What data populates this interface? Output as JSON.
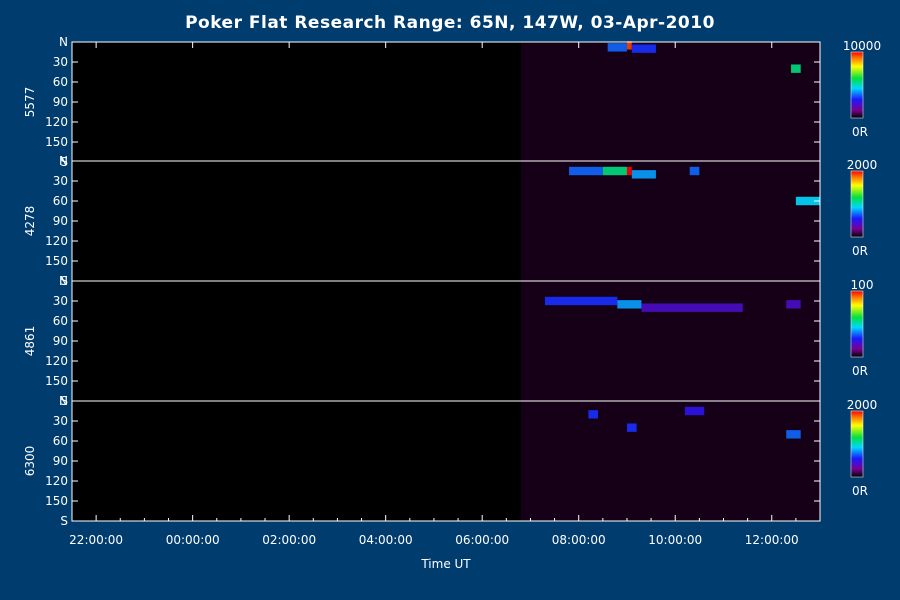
{
  "chart_data": {
    "type": "heatmap",
    "title": "Poker Flat Research Range: 65N, 147W, 03-Apr-2010",
    "xlabel": "Time UT",
    "x_ticks": [
      "22:00:00",
      "00:00:00",
      "02:00:00",
      "04:00:00",
      "06:00:00",
      "08:00:00",
      "10:00:00",
      "12:00:00"
    ],
    "x_range_hours": [
      -2.5,
      13.0
    ],
    "y_ticks": [
      "N",
      "30",
      "60",
      "90",
      "120",
      "150",
      "S"
    ],
    "y_range_deg": [
      0,
      180
    ],
    "data_start_hour": 6.8,
    "grid": false,
    "panels": [
      {
        "wavelength": "5577",
        "colorbar_max": "10000",
        "colorbar_min": "0R",
        "features": [
          {
            "t_start": 8.6,
            "t_end": 9.0,
            "zenith_deg": 8,
            "intensity": 0.35
          },
          {
            "t_start": 9.0,
            "t_end": 9.1,
            "zenith_deg": 5,
            "intensity": 0.95
          },
          {
            "t_start": 9.1,
            "t_end": 9.6,
            "zenith_deg": 10,
            "intensity": 0.3
          },
          {
            "t_start": 12.4,
            "t_end": 12.6,
            "zenith_deg": 40,
            "intensity": 0.55
          }
        ]
      },
      {
        "wavelength": "4278",
        "colorbar_max": "2000",
        "colorbar_min": "0R",
        "features": [
          {
            "t_start": 7.8,
            "t_end": 8.5,
            "zenith_deg": 15,
            "intensity": 0.35
          },
          {
            "t_start": 8.5,
            "t_end": 9.0,
            "zenith_deg": 15,
            "intensity": 0.55
          },
          {
            "t_start": 9.0,
            "t_end": 9.1,
            "zenith_deg": 15,
            "intensity": 1.0
          },
          {
            "t_start": 9.1,
            "t_end": 9.6,
            "zenith_deg": 20,
            "intensity": 0.4
          },
          {
            "t_start": 10.3,
            "t_end": 10.5,
            "zenith_deg": 15,
            "intensity": 0.35
          },
          {
            "t_start": 12.5,
            "t_end": 13.0,
            "zenith_deg": 60,
            "intensity": 0.45
          }
        ]
      },
      {
        "wavelength": "4861",
        "colorbar_max": "100",
        "colorbar_min": "0R",
        "features": [
          {
            "t_start": 7.3,
            "t_end": 8.8,
            "zenith_deg": 30,
            "intensity": 0.3
          },
          {
            "t_start": 8.8,
            "t_end": 9.3,
            "zenith_deg": 35,
            "intensity": 0.4
          },
          {
            "t_start": 9.3,
            "t_end": 11.4,
            "zenith_deg": 40,
            "intensity": 0.2
          },
          {
            "t_start": 12.3,
            "t_end": 12.6,
            "zenith_deg": 35,
            "intensity": 0.2
          }
        ]
      },
      {
        "wavelength": "6300",
        "colorbar_max": "2000",
        "colorbar_min": "0R",
        "features": [
          {
            "t_start": 8.2,
            "t_end": 8.4,
            "zenith_deg": 20,
            "intensity": 0.3
          },
          {
            "t_start": 9.0,
            "t_end": 9.2,
            "zenith_deg": 40,
            "intensity": 0.3
          },
          {
            "t_start": 10.2,
            "t_end": 10.6,
            "zenith_deg": 15,
            "intensity": 0.25
          },
          {
            "t_start": 12.3,
            "t_end": 12.6,
            "zenith_deg": 50,
            "intensity": 0.35
          }
        ]
      }
    ]
  }
}
